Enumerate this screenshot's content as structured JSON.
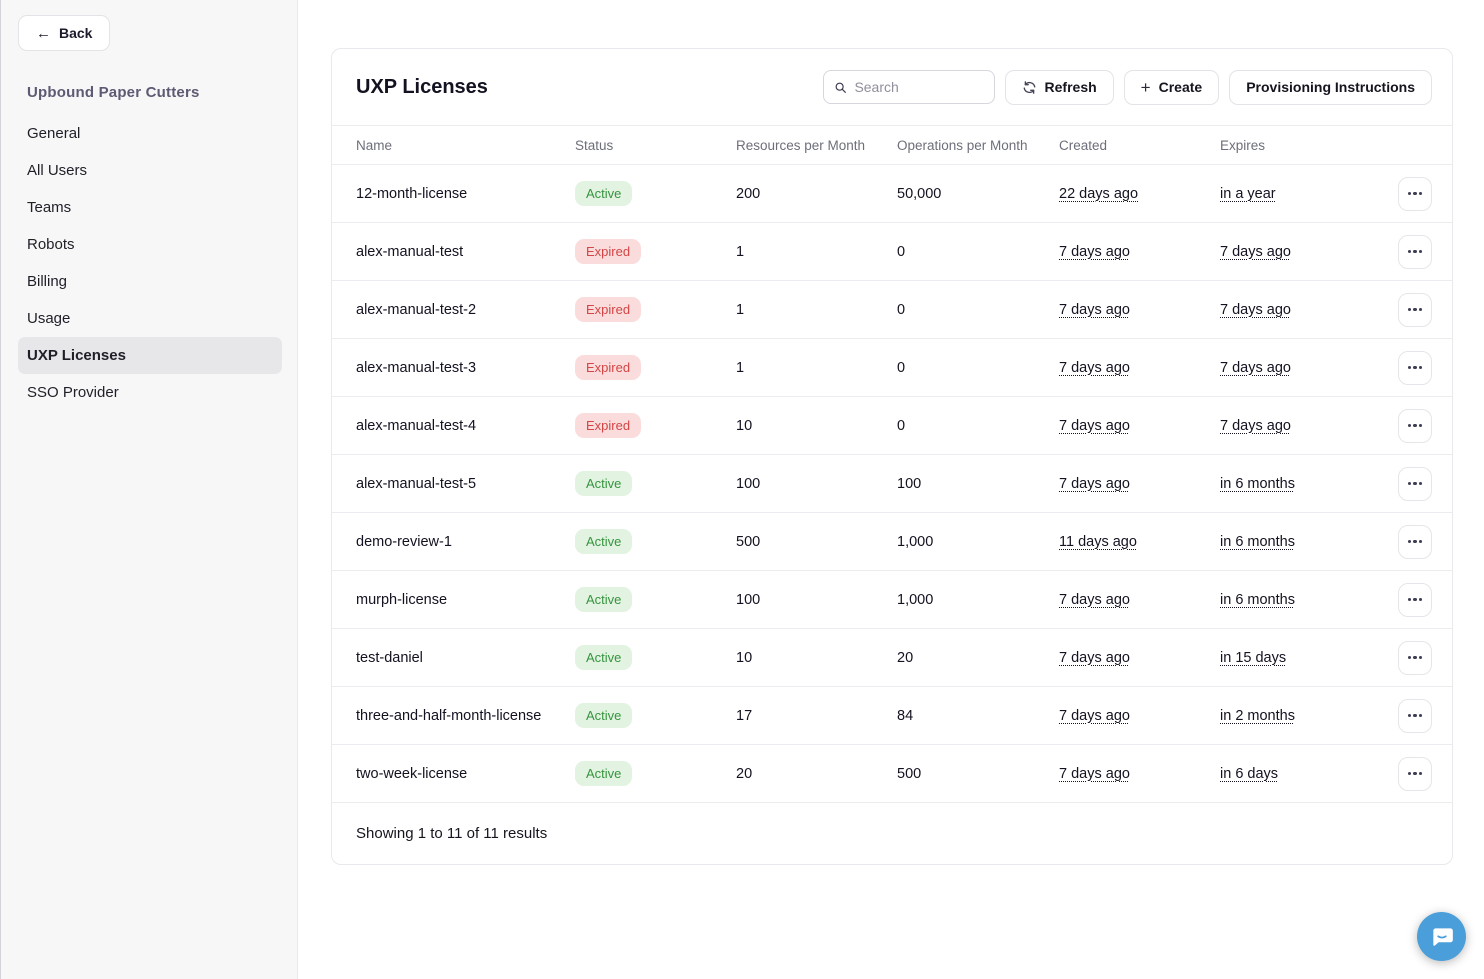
{
  "sidebar": {
    "back_label": "Back",
    "org_name": "Upbound Paper Cutters",
    "items": [
      {
        "label": "General",
        "active": false
      },
      {
        "label": "All Users",
        "active": false
      },
      {
        "label": "Teams",
        "active": false
      },
      {
        "label": "Robots",
        "active": false
      },
      {
        "label": "Billing",
        "active": false
      },
      {
        "label": "Usage",
        "active": false
      },
      {
        "label": "UXP Licenses",
        "active": true
      },
      {
        "label": "SSO Provider",
        "active": false
      }
    ]
  },
  "main": {
    "title": "UXP Licenses",
    "search_placeholder": "Search",
    "buttons": {
      "refresh": "Refresh",
      "create": "Create",
      "provisioning": "Provisioning Instructions"
    },
    "table": {
      "columns": [
        "Name",
        "Status",
        "Resources per Month",
        "Operations per Month",
        "Created",
        "Expires"
      ],
      "rows": [
        {
          "name": "12-month-license",
          "status": "Active",
          "resources": "200",
          "operations": "50,000",
          "created": "22 days ago",
          "expires": "in a year"
        },
        {
          "name": "alex-manual-test",
          "status": "Expired",
          "resources": "1",
          "operations": "0",
          "created": "7 days ago",
          "expires": "7 days ago"
        },
        {
          "name": "alex-manual-test-2",
          "status": "Expired",
          "resources": "1",
          "operations": "0",
          "created": "7 days ago",
          "expires": "7 days ago"
        },
        {
          "name": "alex-manual-test-3",
          "status": "Expired",
          "resources": "1",
          "operations": "0",
          "created": "7 days ago",
          "expires": "7 days ago"
        },
        {
          "name": "alex-manual-test-4",
          "status": "Expired",
          "resources": "10",
          "operations": "0",
          "created": "7 days ago",
          "expires": "7 days ago"
        },
        {
          "name": "alex-manual-test-5",
          "status": "Active",
          "resources": "100",
          "operations": "100",
          "created": "7 days ago",
          "expires": "in 6 months"
        },
        {
          "name": "demo-review-1",
          "status": "Active",
          "resources": "500",
          "operations": "1,000",
          "created": "11 days ago",
          "expires": "in 6 months"
        },
        {
          "name": "murph-license",
          "status": "Active",
          "resources": "100",
          "operations": "1,000",
          "created": "7 days ago",
          "expires": "in 6 months"
        },
        {
          "name": "test-daniel",
          "status": "Active",
          "resources": "10",
          "operations": "20",
          "created": "7 days ago",
          "expires": "in 15 days"
        },
        {
          "name": "three-and-half-month-license",
          "status": "Active",
          "resources": "17",
          "operations": "84",
          "created": "7 days ago",
          "expires": "in 2 months"
        },
        {
          "name": "two-week-license",
          "status": "Active",
          "resources": "20",
          "operations": "500",
          "created": "7 days ago",
          "expires": "in 6 days"
        }
      ],
      "footer": "Showing 1 to 11 of 11 results"
    }
  },
  "icons": {
    "back": "arrow-left",
    "search": "magnifier",
    "refresh": "circular-arrows",
    "create": "plus",
    "row_actions": "ellipsis",
    "chat": "speech-bubble-smile"
  },
  "colors": {
    "active_badge_bg": "#e2f3e1",
    "active_badge_text": "#37943f",
    "expired_badge_bg": "#fbdcdc",
    "expired_badge_text": "#d24646",
    "chat_bubble": "#4a9eda",
    "sidebar_bg": "#f7f7f8",
    "org_name_text": "#5e5a73"
  }
}
